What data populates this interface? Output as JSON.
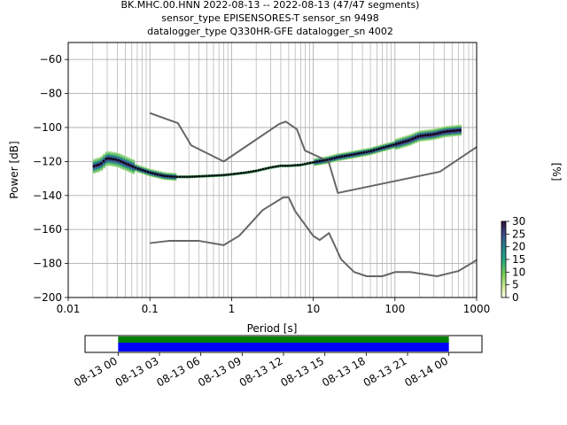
{
  "title": {
    "line1": "BK.MHC.00.HNN   2022-08-13 -- 2022-08-13  (47/47 segments)",
    "line2": "sensor_type EPISENSORES-T sensor_sn 9498",
    "line3": "datalogger_type Q330HR-GFE datalogger_sn 4002"
  },
  "chart_data": [
    {
      "type": "line",
      "name": "ppsd",
      "xscale": "log",
      "xlabel": "Period [s]",
      "ylabel": "Power [dB]",
      "xlim": [
        0.01,
        1000
      ],
      "ylim": [
        -200,
        -50
      ],
      "grid": true,
      "x_ticks": [
        {
          "value": 0.01,
          "label": "0.01"
        },
        {
          "value": 0.1,
          "label": "0.1"
        },
        {
          "value": 1,
          "label": "1"
        },
        {
          "value": 10,
          "label": "10"
        },
        {
          "value": 100,
          "label": "100"
        },
        {
          "value": 1000,
          "label": "1000"
        }
      ],
      "y_ticks": [
        {
          "value": -60,
          "label": "−60"
        },
        {
          "value": -80,
          "label": "−80"
        },
        {
          "value": -100,
          "label": "−100"
        },
        {
          "value": -120,
          "label": "−120"
        },
        {
          "value": -140,
          "label": "−140"
        },
        {
          "value": -160,
          "label": "−160"
        },
        {
          "value": -180,
          "label": "−180"
        },
        {
          "value": -200,
          "label": "−200"
        }
      ],
      "series": [
        {
          "role": "high-noise-model",
          "color": "#666666",
          "x": [
            0.1,
            0.22,
            0.32,
            0.8,
            3.8,
            4.6,
            6.3,
            7.9,
            15.4,
            20,
            354.8,
            1000
          ],
          "y": [
            -91.5,
            -97.4,
            -110.5,
            -120,
            -98,
            -96.5,
            -101,
            -113.5,
            -120,
            -138.5,
            -126,
            -111.5
          ]
        },
        {
          "role": "low-noise-model",
          "color": "#666666",
          "x": [
            0.1,
            0.17,
            0.4,
            0.8,
            1.24,
            2.4,
            4.3,
            5,
            6,
            10,
            12,
            15.6,
            21.9,
            31.6,
            45,
            70,
            101,
            154,
            328,
            600,
            1000
          ],
          "y": [
            -168,
            -166.7,
            -166.7,
            -169.2,
            -163.7,
            -148.6,
            -141.1,
            -141.1,
            -149.2,
            -163.8,
            -166.2,
            -162.1,
            -177.5,
            -185,
            -187.5,
            -187.5,
            -185,
            -185,
            -187.5,
            -184.4,
            -178
          ]
        },
        {
          "role": "mode",
          "color": "#000000",
          "x": [
            0.02,
            0.025,
            0.03,
            0.04,
            0.05,
            0.07,
            0.1,
            0.15,
            0.2,
            0.3,
            0.5,
            0.8,
            1,
            1.5,
            2,
            3,
            4,
            5,
            7,
            10,
            15,
            20,
            30,
            50,
            70,
            100,
            150,
            200,
            300,
            400,
            500,
            650
          ],
          "y": [
            -123,
            -121.5,
            -118,
            -119,
            -121,
            -124,
            -126.5,
            -128.5,
            -129,
            -129,
            -128.5,
            -128,
            -127.5,
            -126.5,
            -125.5,
            -123.5,
            -122.5,
            -122.5,
            -122,
            -120.5,
            -119,
            -117.5,
            -116,
            -114,
            -112,
            -110,
            -107.5,
            -105,
            -104,
            -102.5,
            -102,
            -101.5
          ]
        }
      ]
    },
    {
      "type": "heatmap",
      "name": "colorbar",
      "label": "[%]",
      "range": [
        0,
        30
      ],
      "colormap": "viridis_r",
      "ticks": [
        {
          "value": 0,
          "label": "0"
        },
        {
          "value": 5,
          "label": "5"
        },
        {
          "value": 10,
          "label": "10"
        },
        {
          "value": 15,
          "label": "15"
        },
        {
          "value": 20,
          "label": "20"
        },
        {
          "value": 25,
          "label": "25"
        },
        {
          "value": 30,
          "label": "30"
        }
      ]
    },
    {
      "type": "bar",
      "name": "data-coverage",
      "xlim": [
        -0.1,
        1.1
      ],
      "segments": [
        {
          "label": "coverage",
          "start": 0.0,
          "end": 1.0,
          "color": "#0000ff"
        },
        {
          "label": "gaps-overlap",
          "start": 0.0,
          "end": 1.0,
          "color": "#008000"
        }
      ],
      "x_ticks": [
        {
          "value": 0.0,
          "label": "08-13 00"
        },
        {
          "value": 0.125,
          "label": "08-13 03"
        },
        {
          "value": 0.25,
          "label": "08-13 06"
        },
        {
          "value": 0.375,
          "label": "08-13 09"
        },
        {
          "value": 0.5,
          "label": "08-13 12"
        },
        {
          "value": 0.625,
          "label": "08-13 15"
        },
        {
          "value": 0.75,
          "label": "08-13 18"
        },
        {
          "value": 0.875,
          "label": "08-13 21"
        },
        {
          "value": 1.0,
          "label": "08-14 00"
        }
      ]
    }
  ]
}
